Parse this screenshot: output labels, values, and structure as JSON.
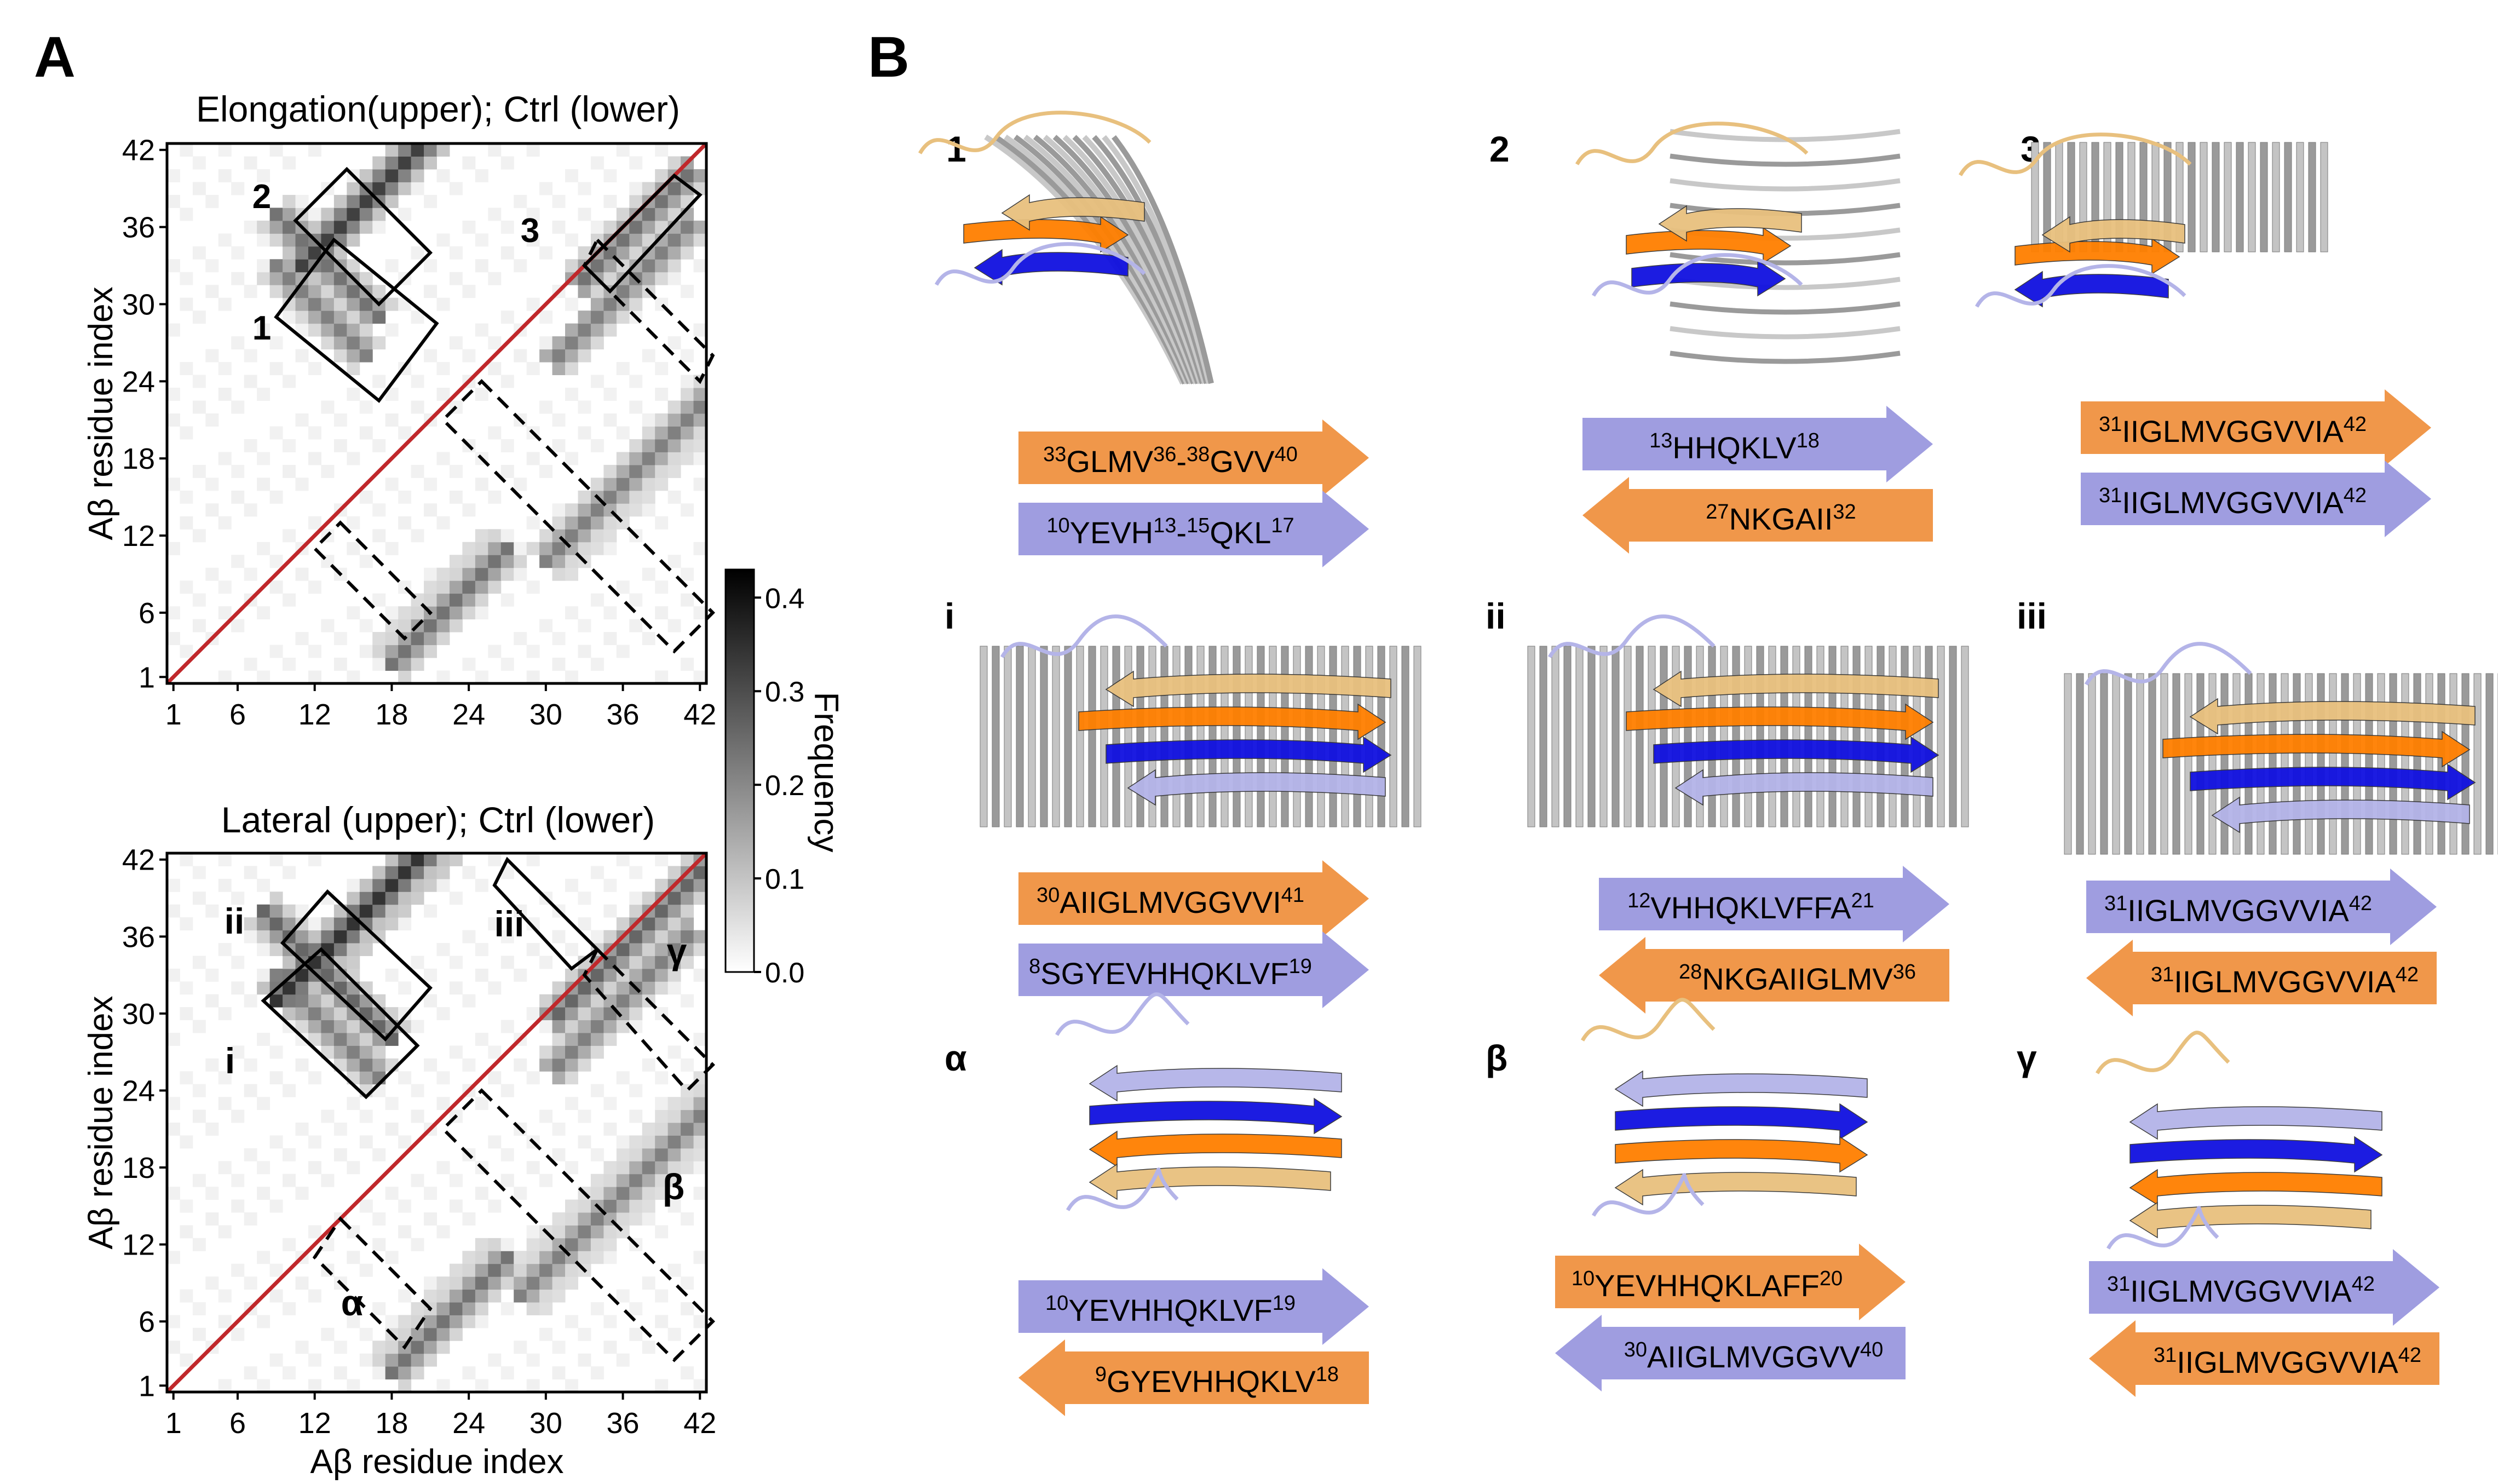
{
  "panel_a": {
    "label": "A",
    "top_map": {
      "title": "Elongation(upper); Ctrl (lower)",
      "ylabel": "Aβ residue index",
      "ticks": [
        "1",
        "6",
        "12",
        "18",
        "24",
        "30",
        "36",
        "42"
      ],
      "box_labels": [
        "1",
        "2",
        "3"
      ]
    },
    "bottom_map": {
      "title": "Lateral (upper); Ctrl (lower)",
      "ylabel": "Aβ residue index",
      "xlabel": "Aβ residue index",
      "ticks": [
        "1",
        "6",
        "12",
        "18",
        "24",
        "30",
        "36",
        "42"
      ],
      "box_labels": [
        "i",
        "ii",
        "iii",
        "α",
        "β",
        "γ"
      ]
    },
    "colorbar": {
      "label": "Frequency",
      "ticks": [
        "0.0",
        "0.1",
        "0.2",
        "0.3",
        "0.4"
      ],
      "colors": {
        "low": "#ffffff",
        "high": "#000000"
      }
    },
    "diagonal_color": "#c0282b"
  },
  "panel_b": {
    "label": "B",
    "colors": {
      "orange": "#f0974a",
      "blue": "#9f9de0",
      "dark_orange": "#ff7f00",
      "dark_blue": "#1010e0",
      "tan": "#e8c07e",
      "light_blue": "#b4b4e8",
      "gray": "#a8a8a8"
    },
    "cells": [
      {
        "label": "1",
        "top": {
          "color": "orange",
          "dir": "right",
          "parts": [
            [
              "33",
              "GLMV"
            ],
            [
              "36",
              "-"
            ],
            [
              "38",
              "GVV"
            ],
            [
              "40",
              ""
            ]
          ]
        },
        "bottom": {
          "color": "blue",
          "dir": "right",
          "parts": [
            [
              "10",
              "YEVH"
            ],
            [
              "13",
              "-"
            ],
            [
              "15",
              "QKL"
            ],
            [
              "17",
              ""
            ]
          ]
        }
      },
      {
        "label": "2",
        "top": {
          "color": "blue",
          "dir": "right",
          "parts": [
            [
              "13",
              "HHQKLV"
            ],
            [
              "18",
              ""
            ]
          ]
        },
        "bottom": {
          "color": "orange",
          "dir": "left",
          "parts": [
            [
              "27",
              "NKGAII"
            ],
            [
              "32",
              ""
            ]
          ]
        }
      },
      {
        "label": "3",
        "top": {
          "color": "orange",
          "dir": "right",
          "parts": [
            [
              "31",
              "IIGLMVGGVVIA"
            ],
            [
              "42",
              ""
            ]
          ]
        },
        "bottom": {
          "color": "blue",
          "dir": "right",
          "parts": [
            [
              "31",
              "IIGLMVGGVVIA"
            ],
            [
              "42",
              ""
            ]
          ]
        }
      },
      {
        "label": "i",
        "top": {
          "color": "orange",
          "dir": "right",
          "parts": [
            [
              "30",
              "AIIGLMVGGVVI"
            ],
            [
              "41",
              ""
            ]
          ]
        },
        "bottom": {
          "color": "blue",
          "dir": "right",
          "parts": [
            [
              "8",
              "SGYEVHHQKLVF"
            ],
            [
              "19",
              ""
            ]
          ]
        }
      },
      {
        "label": "ii",
        "top": {
          "color": "blue",
          "dir": "right",
          "parts": [
            [
              "12",
              "VHHQKLVFFA"
            ],
            [
              "21",
              ""
            ]
          ]
        },
        "bottom": {
          "color": "orange",
          "dir": "left",
          "parts": [
            [
              "28",
              "NKGAIIGLMV"
            ],
            [
              "36",
              ""
            ]
          ]
        }
      },
      {
        "label": "iii",
        "top": {
          "color": "blue",
          "dir": "right",
          "parts": [
            [
              "31",
              "IIGLMVGGVVIA"
            ],
            [
              "42",
              ""
            ]
          ]
        },
        "bottom": {
          "color": "orange",
          "dir": "left",
          "parts": [
            [
              "31",
              "IIGLMVGGVVIA"
            ],
            [
              "42",
              ""
            ]
          ]
        }
      },
      {
        "label": "α",
        "top": {
          "color": "blue",
          "dir": "right",
          "parts": [
            [
              "10",
              "YEVHHQKLVF"
            ],
            [
              "19",
              ""
            ]
          ]
        },
        "bottom": {
          "color": "orange",
          "dir": "left",
          "parts": [
            [
              "9",
              "GYEVHHQKLV"
            ],
            [
              "18",
              ""
            ]
          ]
        }
      },
      {
        "label": "β",
        "top": {
          "color": "orange",
          "dir": "right",
          "parts": [
            [
              "10",
              "YEVHHQKLAFF"
            ],
            [
              "20",
              ""
            ]
          ]
        },
        "bottom": {
          "color": "blue",
          "dir": "left",
          "parts": [
            [
              "30",
              "AIIGLMVGGVV"
            ],
            [
              "40",
              ""
            ]
          ]
        }
      },
      {
        "label": "γ",
        "top": {
          "color": "blue",
          "dir": "right",
          "parts": [
            [
              "31",
              "IIGLMVGGVVIA"
            ],
            [
              "42",
              ""
            ]
          ]
        },
        "bottom": {
          "color": "orange",
          "dir": "left",
          "parts": [
            [
              "31",
              "IIGLMVGGVVIA"
            ],
            [
              "42",
              ""
            ]
          ]
        }
      }
    ]
  }
}
